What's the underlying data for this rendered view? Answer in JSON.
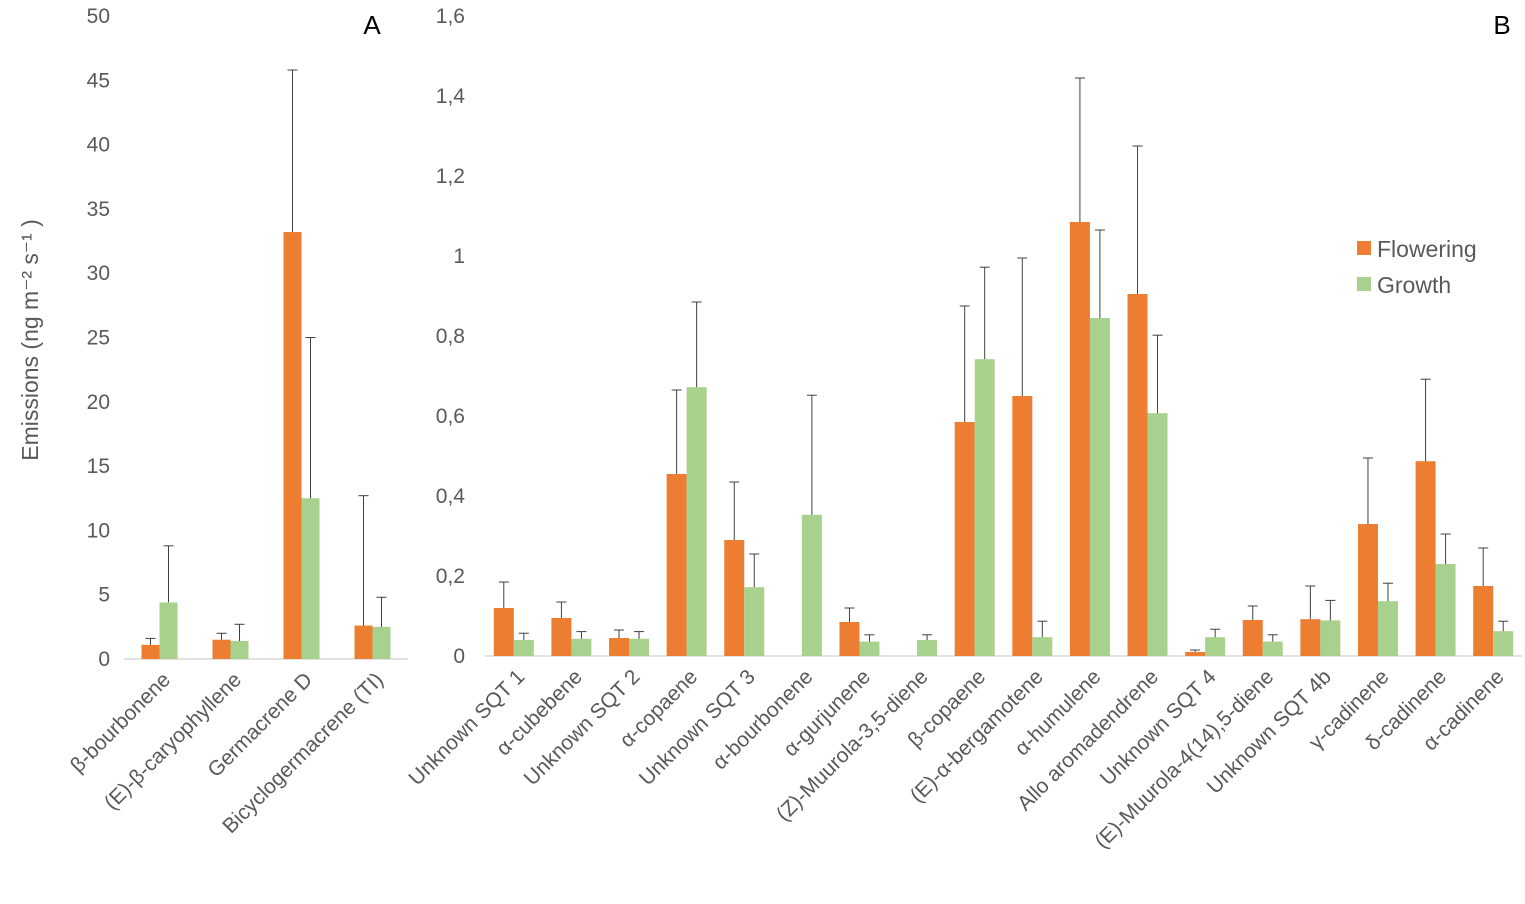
{
  "colors": {
    "flowering": "#ED7D31",
    "growth": "#A9D18E",
    "axis": "#D9D9D9",
    "error": "#404040"
  },
  "chart_data": [
    {
      "type": "bar",
      "panel_label": "A",
      "ylabel": "Emissions (ng m⁻² s⁻¹ )",
      "ylim": [
        0,
        50
      ],
      "yticks": [
        "0",
        "5",
        "10",
        "15",
        "20",
        "25",
        "30",
        "35",
        "40",
        "45",
        "50"
      ],
      "categories": [
        "β-bourbonene",
        "(E)-β-caryophyllene",
        "Germacrene D",
        "Bicyclogermacrene (TI)"
      ],
      "series": [
        {
          "name": "Flowering",
          "values": [
            1.1,
            1.5,
            33.2,
            2.6
          ],
          "error_top": [
            1.6,
            2.0,
            45.8,
            12.7
          ]
        },
        {
          "name": "Growth",
          "values": [
            4.4,
            1.4,
            12.5,
            2.5
          ],
          "error_top": [
            8.8,
            2.7,
            25.0,
            4.8
          ]
        }
      ]
    },
    {
      "type": "bar",
      "panel_label": "B",
      "ylim": [
        0,
        1.6
      ],
      "yticks": [
        "0",
        "0,2",
        "0,4",
        "0,6",
        "0,8",
        "1",
        "1,2",
        "1,4",
        "1,6"
      ],
      "legend": {
        "position": "top-right",
        "entries": [
          "Flowering",
          "Growth"
        ]
      },
      "categories": [
        "Unknown SQT 1",
        "α-cubebene",
        "Unknown SQT 2",
        "α-copaene",
        "Unknown SQT 3",
        "α-bourbonene",
        "α-gurjunene",
        "(Z)-Muurola-3,5-diene",
        "β-copaene",
        "(E)-α-bergamotene",
        "α-humulene",
        "Allo aromadendrene",
        "Unknown SQT 4",
        "(E)-Muurola-4(14),5-diene",
        "Unknown SQT 4b",
        "γ-cadinene",
        "δ-cadinene",
        "α-cadinene"
      ],
      "series": [
        {
          "name": "Flowering",
          "values": [
            0.12,
            0.095,
            0.045,
            0.455,
            0.29,
            0,
            0.085,
            0,
            0.585,
            0.65,
            1.085,
            0.905,
            0.01,
            0.09,
            0.092,
            0.33,
            0.487,
            0.175
          ],
          "error_top": [
            0.185,
            0.135,
            0.065,
            0.665,
            0.435,
            null,
            0.12,
            null,
            0.875,
            0.995,
            1.445,
            1.275,
            0.015,
            0.125,
            0.175,
            0.495,
            0.692,
            0.27
          ]
        },
        {
          "name": "Growth",
          "values": [
            0.04,
            0.043,
            0.043,
            0.672,
            0.172,
            0.353,
            0.036,
            0.04,
            0.742,
            0.047,
            0.845,
            0.607,
            0.047,
            0.036,
            0.089,
            0.137,
            0.23,
            0.062
          ],
          "error_top": [
            0.057,
            0.061,
            0.061,
            0.885,
            0.255,
            0.652,
            0.053,
            0.053,
            0.972,
            0.087,
            1.065,
            0.802,
            0.067,
            0.053,
            0.139,
            0.182,
            0.305,
            0.087
          ]
        }
      ]
    }
  ]
}
